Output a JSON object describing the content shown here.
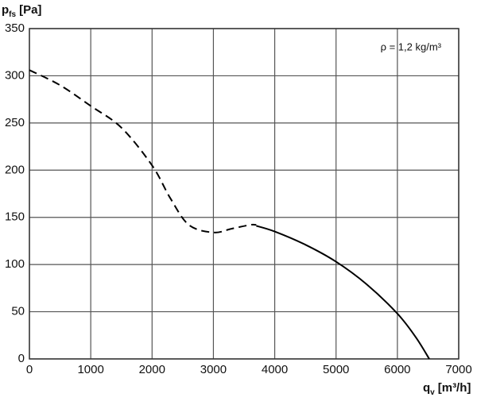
{
  "chart_data": {
    "type": "line",
    "y_label": {
      "symbol": "p",
      "subscript": "fs",
      "unit": "[Pa]"
    },
    "x_label": {
      "symbol": "q",
      "subscript": "v",
      "unit": "[m³/h]"
    },
    "annotation": "ρ = 1,2 kg/m³",
    "series": [
      {
        "color": "#000000",
        "dashed": true,
        "x": [
          0,
          500,
          1000,
          1500,
          2000,
          2300,
          2600,
          3000,
          3300,
          3600,
          3700
        ],
        "values": [
          306,
          290,
          268,
          245,
          205,
          170,
          142,
          134,
          138,
          142,
          142
        ]
      },
      {
        "color": "#000000",
        "dashed": false,
        "x": [
          3700,
          4000,
          4500,
          5000,
          5500,
          6000,
          6300,
          6520
        ],
        "values": [
          141,
          135,
          121,
          103,
          79,
          48,
          23,
          0
        ]
      }
    ],
    "xlim": [
      0,
      7000
    ],
    "xticks": [
      0,
      1000,
      2000,
      3000,
      4000,
      5000,
      6000,
      7000
    ],
    "ylim": [
      0,
      350
    ],
    "yticks": [
      0,
      50,
      100,
      150,
      200,
      250,
      300,
      350
    ],
    "grid": true
  }
}
